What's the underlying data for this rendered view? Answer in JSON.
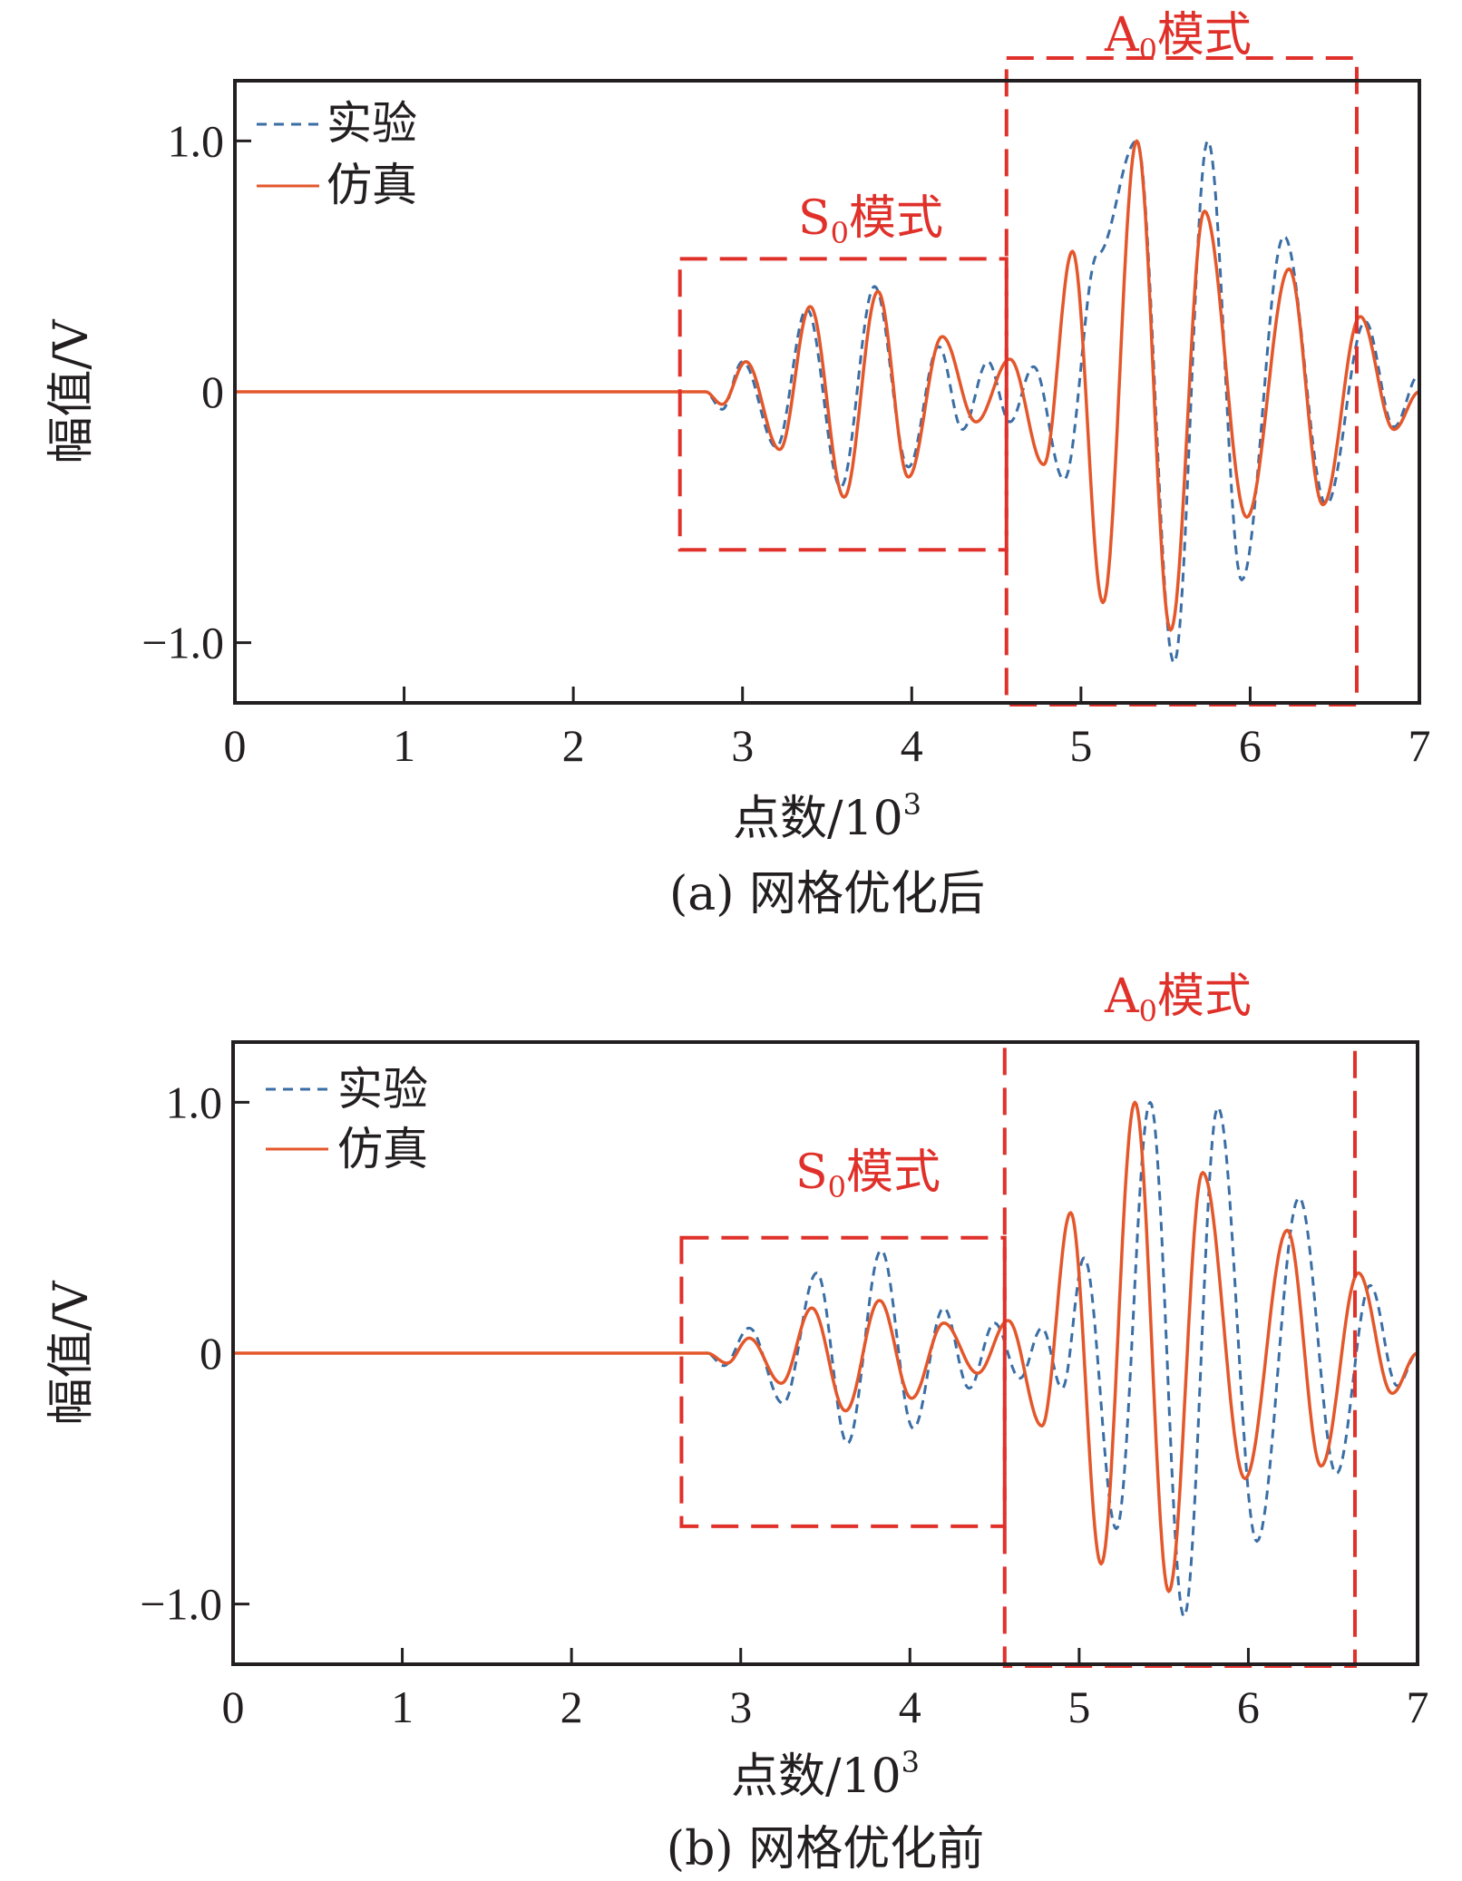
{
  "colors": {
    "experiment": "#3a6ea5",
    "simulation": "#e3572b",
    "annotation": "#e0302a",
    "axis": "#231f20"
  },
  "chart_data": [
    {
      "type": "line",
      "caption": "(a) 网格优化后",
      "xlabel": "点数/10",
      "xlabel_sup": "3",
      "ylabel": "幅值/V",
      "xlim": [
        0,
        7
      ],
      "ylim": [
        -1.24,
        1.24
      ],
      "xticks": [
        "0",
        "1",
        "2",
        "3",
        "4",
        "5",
        "6",
        "7"
      ],
      "yticks": [
        {
          "value": 1.0,
          "label": "1.0"
        },
        {
          "value": 0,
          "label": "0"
        },
        {
          "value": -1.0,
          "label": "−1.0"
        }
      ],
      "legend": {
        "position": "top-left",
        "entries": [
          "实验",
          "仿真"
        ]
      },
      "series": [
        {
          "name": "实验",
          "style": "dashed",
          "color": "#3a6ea5",
          "x": [
            0,
            2.78,
            2.88,
            3.0,
            3.2,
            3.38,
            3.58,
            3.78,
            3.98,
            4.16,
            4.3,
            4.45,
            4.58,
            4.72,
            4.9,
            5.1,
            5.33,
            5.55,
            5.75,
            5.95,
            6.2,
            6.45,
            6.68,
            6.85,
            7.0
          ],
          "y": [
            0,
            0,
            -0.07,
            0.12,
            -0.22,
            0.33,
            -0.38,
            0.42,
            -0.3,
            0.18,
            -0.15,
            0.12,
            -0.12,
            0.1,
            -0.35,
            0.55,
            1.0,
            -1.08,
            1.0,
            -0.75,
            0.62,
            -0.45,
            0.28,
            -0.14,
            0.07
          ]
        },
        {
          "name": "仿真",
          "style": "solid",
          "color": "#e3572b",
          "x": [
            0,
            2.78,
            2.88,
            3.02,
            3.22,
            3.4,
            3.6,
            3.8,
            3.98,
            4.18,
            4.38,
            4.58,
            4.78,
            4.95,
            5.13,
            5.33,
            5.53,
            5.73,
            5.98,
            6.23,
            6.43,
            6.65,
            6.85,
            7.0
          ],
          "y": [
            0,
            0,
            -0.05,
            0.12,
            -0.23,
            0.34,
            -0.42,
            0.4,
            -0.34,
            0.22,
            -0.12,
            0.13,
            -0.29,
            0.56,
            -0.84,
            1.0,
            -0.95,
            0.72,
            -0.5,
            0.49,
            -0.45,
            0.3,
            -0.15,
            0.0
          ]
        }
      ],
      "annotations": [
        {
          "label": "S",
          "sub": "0",
          "suffix": "模式",
          "x_range": [
            2.63,
            4.56
          ],
          "y_range": [
            -0.63,
            0.53
          ]
        },
        {
          "label": "A",
          "sub": "0",
          "suffix": "模式",
          "x_range": [
            4.56,
            6.63
          ],
          "y_range": [
            -1.24,
            1.26
          ]
        }
      ]
    },
    {
      "type": "line",
      "caption": "(b) 网格优化前",
      "xlabel": "点数/10",
      "xlabel_sup": "3",
      "ylabel": "幅值/V",
      "xlim": [
        0,
        7
      ],
      "ylim": [
        -1.24,
        1.24
      ],
      "xticks": [
        "0",
        "1",
        "2",
        "3",
        "4",
        "5",
        "6",
        "7"
      ],
      "yticks": [
        {
          "value": 1.0,
          "label": "1.0"
        },
        {
          "value": 0,
          "label": "0"
        },
        {
          "value": -1.0,
          "label": "−1.0"
        }
      ],
      "legend": {
        "position": "top-left",
        "entries": [
          "实验",
          "仿真"
        ]
      },
      "series": [
        {
          "name": "实验",
          "style": "dashed",
          "color": "#3a6ea5",
          "x": [
            0,
            2.8,
            2.9,
            3.05,
            3.25,
            3.45,
            3.63,
            3.83,
            4.02,
            4.2,
            4.35,
            4.5,
            4.65,
            4.78,
            4.9,
            5.03,
            5.22,
            5.42,
            5.62,
            5.82,
            6.05,
            6.3,
            6.52,
            6.72,
            6.88,
            7.0
          ],
          "y": [
            0,
            0,
            -0.05,
            0.1,
            -0.2,
            0.32,
            -0.36,
            0.41,
            -0.3,
            0.18,
            -0.14,
            0.12,
            -0.1,
            0.1,
            -0.14,
            0.38,
            -0.7,
            1.0,
            -1.05,
            0.98,
            -0.75,
            0.62,
            -0.48,
            0.27,
            -0.13,
            0.0
          ]
        },
        {
          "name": "仿真",
          "style": "solid",
          "color": "#e3572b",
          "x": [
            0,
            2.8,
            2.92,
            3.05,
            3.24,
            3.42,
            3.62,
            3.82,
            4.01,
            4.2,
            4.4,
            4.58,
            4.78,
            4.95,
            5.13,
            5.33,
            5.53,
            5.73,
            5.98,
            6.23,
            6.43,
            6.65,
            6.85,
            7.0
          ],
          "y": [
            0,
            0,
            -0.04,
            0.06,
            -0.12,
            0.18,
            -0.23,
            0.21,
            -0.18,
            0.12,
            -0.08,
            0.13,
            -0.29,
            0.56,
            -0.84,
            1.0,
            -0.95,
            0.72,
            -0.5,
            0.49,
            -0.45,
            0.32,
            -0.16,
            0.0
          ]
        }
      ],
      "annotations": [
        {
          "label": "S",
          "sub": "0",
          "suffix": "模式",
          "x_range": [
            2.65,
            4.56
          ],
          "y_range": [
            -0.69,
            0.46
          ]
        },
        {
          "label": "A",
          "sub": "0",
          "suffix": "模式",
          "x_range": [
            4.56,
            6.63
          ],
          "y_range": [
            -1.24,
            1.24
          ]
        }
      ]
    }
  ]
}
